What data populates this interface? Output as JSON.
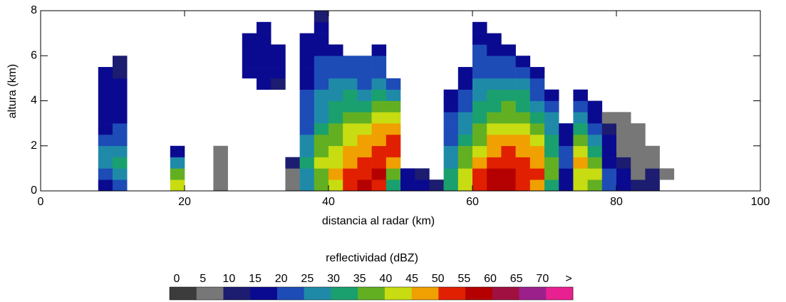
{
  "chart_data": {
    "type": "heatmap",
    "xlabel": "distancia al radar (km)",
    "ylabel": "altura (km)",
    "xlim": [
      0,
      100
    ],
    "xticks": [
      0,
      20,
      40,
      60,
      80,
      100
    ],
    "ylim": [
      0,
      8
    ],
    "yticks": [
      0,
      2,
      4,
      6,
      8
    ],
    "x": [
      1,
      3,
      5,
      7,
      9,
      11,
      13,
      15,
      17,
      19,
      21,
      23,
      25,
      27,
      29,
      31,
      33,
      35,
      37,
      39,
      41,
      43,
      45,
      47,
      49,
      51,
      53,
      55,
      57,
      59,
      61,
      63,
      65,
      67,
      69,
      71,
      73,
      75,
      77,
      79,
      81,
      83,
      85,
      87,
      89,
      91,
      93,
      95,
      97,
      99
    ],
    "y": [
      0.25,
      0.75,
      1.25,
      1.75,
      2.25,
      2.75,
      3.25,
      3.75,
      4.25,
      4.75,
      5.25,
      5.75,
      6.25,
      6.75,
      7.25,
      7.75
    ],
    "z": [
      [
        null,
        null,
        null,
        null,
        null,
        null,
        null,
        null,
        null,
        null,
        null,
        null,
        null,
        null,
        null,
        null
      ],
      [
        null,
        null,
        null,
        null,
        null,
        null,
        null,
        null,
        null,
        null,
        null,
        null,
        null,
        null,
        null,
        null
      ],
      [
        null,
        null,
        null,
        null,
        null,
        null,
        null,
        null,
        null,
        null,
        null,
        null,
        null,
        null,
        null,
        null
      ],
      [
        null,
        null,
        null,
        null,
        null,
        null,
        null,
        null,
        null,
        null,
        null,
        null,
        null,
        null,
        null,
        null
      ],
      [
        15,
        20,
        25,
        25,
        20,
        15,
        15,
        15,
        15,
        15,
        15,
        null,
        null,
        null,
        null,
        null
      ],
      [
        20,
        25,
        30,
        25,
        20,
        20,
        15,
        15,
        15,
        15,
        10,
        10,
        null,
        null,
        null,
        null
      ],
      [
        null,
        null,
        null,
        null,
        null,
        null,
        null,
        null,
        null,
        null,
        null,
        null,
        null,
        null,
        null,
        null
      ],
      [
        null,
        null,
        null,
        null,
        null,
        null,
        null,
        null,
        null,
        null,
        null,
        null,
        null,
        null,
        null,
        null
      ],
      [
        null,
        null,
        null,
        null,
        null,
        null,
        null,
        null,
        null,
        null,
        null,
        null,
        null,
        null,
        null,
        null
      ],
      [
        40,
        35,
        25,
        15,
        null,
        null,
        null,
        null,
        null,
        null,
        null,
        null,
        null,
        null,
        null,
        null
      ],
      [
        null,
        null,
        null,
        null,
        null,
        null,
        null,
        null,
        null,
        null,
        null,
        null,
        null,
        null,
        null,
        null
      ],
      [
        null,
        null,
        null,
        null,
        null,
        null,
        null,
        null,
        null,
        null,
        null,
        null,
        null,
        null,
        null,
        null
      ],
      [
        5,
        5,
        5,
        5,
        null,
        null,
        null,
        null,
        null,
        null,
        null,
        null,
        null,
        null,
        null,
        null
      ],
      [
        null,
        null,
        null,
        null,
        null,
        null,
        null,
        null,
        null,
        null,
        null,
        null,
        null,
        null,
        null,
        null
      ],
      [
        null,
        null,
        null,
        null,
        null,
        null,
        null,
        null,
        null,
        null,
        15,
        15,
        15,
        15,
        null,
        null
      ],
      [
        null,
        null,
        null,
        null,
        null,
        null,
        null,
        null,
        null,
        15,
        15,
        15,
        15,
        15,
        15,
        null
      ],
      [
        null,
        null,
        null,
        null,
        null,
        null,
        null,
        null,
        null,
        10,
        15,
        15,
        15,
        null,
        null,
        null
      ],
      [
        5,
        5,
        10,
        null,
        null,
        null,
        null,
        null,
        null,
        null,
        null,
        null,
        null,
        null,
        null,
        null
      ],
      [
        25,
        25,
        30,
        25,
        25,
        20,
        20,
        20,
        20,
        15,
        15,
        15,
        15,
        15,
        null,
        null
      ],
      [
        35,
        35,
        40,
        35,
        35,
        30,
        25,
        25,
        25,
        20,
        20,
        20,
        15,
        15,
        15,
        10
      ],
      [
        40,
        45,
        40,
        40,
        35,
        35,
        30,
        30,
        25,
        25,
        20,
        20,
        15,
        null,
        null,
        null
      ],
      [
        50,
        50,
        45,
        45,
        40,
        40,
        35,
        30,
        30,
        25,
        20,
        20,
        null,
        null,
        null,
        null
      ],
      [
        55,
        50,
        50,
        45,
        45,
        40,
        35,
        30,
        25,
        20,
        20,
        20,
        null,
        null,
        null,
        null
      ],
      [
        50,
        55,
        50,
        50,
        45,
        45,
        40,
        35,
        30,
        25,
        20,
        20,
        15,
        null,
        null,
        null
      ],
      [
        30,
        35,
        45,
        50,
        50,
        45,
        40,
        35,
        25,
        20,
        null,
        null,
        null,
        null,
        null,
        null
      ],
      [
        15,
        15,
        null,
        null,
        null,
        null,
        null,
        null,
        null,
        null,
        null,
        null,
        null,
        null,
        null,
        null
      ],
      [
        15,
        10,
        null,
        null,
        null,
        null,
        null,
        null,
        null,
        null,
        null,
        null,
        null,
        null,
        null,
        null
      ],
      [
        10,
        null,
        null,
        null,
        null,
        null,
        null,
        null,
        null,
        null,
        null,
        null,
        null,
        null,
        null,
        null
      ],
      [
        30,
        30,
        25,
        25,
        20,
        20,
        20,
        15,
        15,
        null,
        null,
        null,
        null,
        null,
        null,
        null
      ],
      [
        40,
        40,
        35,
        35,
        30,
        25,
        25,
        20,
        20,
        15,
        15,
        null,
        null,
        null,
        null,
        null
      ],
      [
        50,
        50,
        45,
        40,
        35,
        35,
        30,
        30,
        25,
        25,
        20,
        20,
        20,
        15,
        15,
        null
      ],
      [
        55,
        55,
        50,
        45,
        45,
        40,
        35,
        30,
        30,
        25,
        20,
        20,
        15,
        15,
        null,
        null
      ],
      [
        55,
        55,
        50,
        50,
        45,
        40,
        35,
        35,
        30,
        25,
        20,
        20,
        15,
        null,
        null,
        null
      ],
      [
        50,
        50,
        50,
        45,
        45,
        40,
        35,
        30,
        30,
        25,
        20,
        15,
        null,
        null,
        null,
        null
      ],
      [
        45,
        50,
        45,
        45,
        40,
        35,
        30,
        25,
        20,
        20,
        15,
        null,
        null,
        null,
        null,
        null
      ],
      [
        30,
        35,
        35,
        30,
        30,
        25,
        25,
        20,
        15,
        null,
        null,
        null,
        null,
        null,
        null,
        null
      ],
      [
        15,
        15,
        20,
        20,
        15,
        15,
        null,
        null,
        null,
        null,
        null,
        null,
        null,
        null,
        null,
        null
      ],
      [
        40,
        40,
        45,
        40,
        35,
        30,
        25,
        20,
        15,
        null,
        null,
        null,
        null,
        null,
        null,
        null
      ],
      [
        35,
        40,
        35,
        30,
        25,
        20,
        15,
        15,
        null,
        null,
        null,
        null,
        null,
        null,
        null,
        null
      ],
      [
        20,
        20,
        15,
        15,
        15,
        10,
        5,
        null,
        null,
        null,
        null,
        null,
        null,
        null,
        null,
        null
      ],
      [
        15,
        15,
        10,
        5,
        5,
        5,
        5,
        null,
        null,
        null,
        null,
        null,
        null,
        null,
        null,
        null
      ],
      [
        10,
        5,
        5,
        5,
        5,
        5,
        null,
        null,
        null,
        null,
        null,
        null,
        null,
        null,
        null,
        null
      ],
      [
        10,
        10,
        5,
        5,
        null,
        null,
        null,
        null,
        null,
        null,
        null,
        null,
        null,
        null,
        null,
        null
      ],
      [
        null,
        5,
        null,
        null,
        null,
        null,
        null,
        null,
        null,
        null,
        null,
        null,
        null,
        null,
        null,
        null
      ],
      [
        null,
        null,
        null,
        null,
        null,
        null,
        null,
        null,
        null,
        null,
        null,
        null,
        null,
        null,
        null,
        null
      ],
      [
        null,
        null,
        null,
        null,
        null,
        null,
        null,
        null,
        null,
        null,
        null,
        null,
        null,
        null,
        null,
        null
      ],
      [
        null,
        null,
        null,
        null,
        null,
        null,
        null,
        null,
        null,
        null,
        null,
        null,
        null,
        null,
        null,
        null
      ],
      [
        null,
        null,
        null,
        null,
        null,
        null,
        null,
        null,
        null,
        null,
        null,
        null,
        null,
        null,
        null,
        null
      ],
      [
        null,
        null,
        null,
        null,
        null,
        null,
        null,
        null,
        null,
        null,
        null,
        null,
        null,
        null,
        null,
        null
      ],
      [
        null,
        null,
        null,
        null,
        null,
        null,
        null,
        null,
        null,
        null,
        null,
        null,
        null,
        null,
        null,
        null
      ]
    ],
    "colorbar": {
      "title": "reflectividad (dBZ)",
      "ticks": [
        0,
        5,
        10,
        15,
        20,
        25,
        30,
        35,
        40,
        45,
        50,
        55,
        60,
        65,
        {
          "value": 70,
          "label": "70"
        },
        {
          "value": 75,
          "label": ">"
        }
      ],
      "colors": [
        "#3c3c3c",
        "#777777",
        "#1c1c70",
        "#0a0a90",
        "#1d4cb6",
        "#1f8aa8",
        "#1aa06e",
        "#62b022",
        "#c8dc12",
        "#f0a000",
        "#e02000",
        "#b40000",
        "#a01040",
        "#9c208c",
        "#e82090"
      ]
    }
  }
}
